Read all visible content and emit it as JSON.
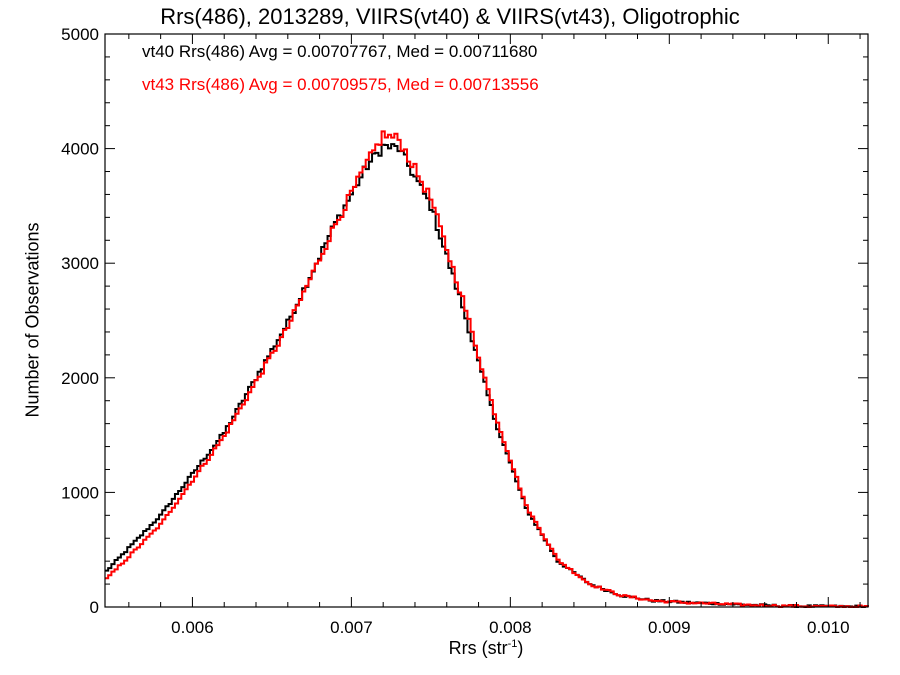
{
  "chart_data": {
    "type": "line",
    "step": true,
    "title": "Rrs(486), 2013289, VIIRS(vt40) & VIIRS(vt43), Oligotrophic",
    "xlabel_base": "Rrs (str",
    "xlabel_sup": "-1",
    "xlabel_tail": ")",
    "ylabel": "Number of Observations",
    "xlim": [
      0.00545,
      0.01025
    ],
    "ylim": [
      0,
      5000
    ],
    "xticks": [
      0.006,
      0.007,
      0.008,
      0.009,
      0.01
    ],
    "xtick_labels": [
      "0.006",
      "0.007",
      "0.008",
      "0.009",
      "0.010"
    ],
    "yticks": [
      0,
      1000,
      2000,
      3000,
      4000,
      5000
    ],
    "ytick_labels": [
      "0",
      "1000",
      "2000",
      "3000",
      "4000",
      "5000"
    ],
    "legend_placement": "top-left",
    "annotations": [
      {
        "text": "vt40 Rrs(486) Avg = 0.00707767, Med = 0.00711680",
        "color": "#000000"
      },
      {
        "text": "vt43 Rrs(486) Avg = 0.00709575, Med = 0.00713556",
        "color": "#ff0000"
      }
    ],
    "x": [
      0.00545,
      0.0058,
      0.0062,
      0.0066,
      0.0069,
      0.0071,
      0.0072,
      0.0073,
      0.0075,
      0.0077,
      0.0079,
      0.0081,
      0.0083,
      0.0085,
      0.0087,
      0.0089,
      0.0091,
      0.0093,
      0.0095,
      0.0097,
      0.0099,
      0.01025
    ],
    "series": [
      {
        "name": "vt40",
        "color": "#000000",
        "values": [
          300,
          800,
          1520,
          2480,
          3350,
          3850,
          4020,
          4000,
          3500,
          2620,
          1650,
          860,
          400,
          200,
          100,
          55,
          40,
          30,
          18,
          10,
          6,
          3
        ]
      },
      {
        "name": "vt43",
        "color": "#ff0000",
        "values": [
          230,
          720,
          1490,
          2440,
          3340,
          3870,
          4120,
          4080,
          3560,
          2690,
          1700,
          880,
          410,
          200,
          100,
          55,
          38,
          28,
          17,
          10,
          6,
          3
        ]
      }
    ]
  }
}
